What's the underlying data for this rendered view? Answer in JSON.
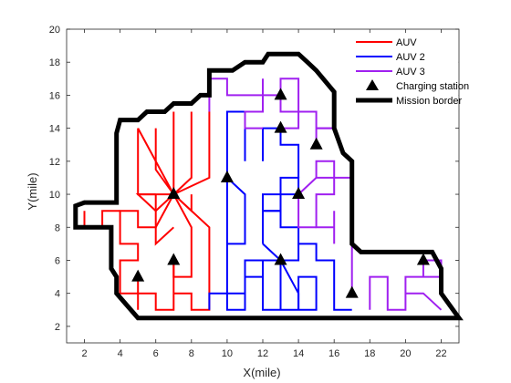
{
  "chart_data": {
    "type": "line",
    "xlabel": "X(mile)",
    "ylabel": "Y(mile)",
    "xlim": [
      1,
      23
    ],
    "ylim": [
      1,
      20
    ],
    "xticks": [
      2,
      4,
      6,
      8,
      10,
      12,
      14,
      16,
      18,
      20,
      22
    ],
    "yticks": [
      2,
      4,
      6,
      8,
      10,
      12,
      14,
      16,
      18,
      20
    ],
    "grid": false,
    "legend_position": "top-right",
    "legend": [
      {
        "label": "AUV",
        "color": "#ff0000",
        "kind": "line"
      },
      {
        "label": "AUV 2",
        "color": "#0000ff",
        "kind": "line"
      },
      {
        "label": "AUV 3",
        "color": "#a020f0",
        "kind": "line"
      },
      {
        "label": "Charging station",
        "color": "#000000",
        "kind": "triangle"
      },
      {
        "label": "Mission border",
        "color": "#000000",
        "kind": "thick-line"
      }
    ],
    "border": [
      [
        1.5,
        8
      ],
      [
        1.5,
        9.3
      ],
      [
        2,
        9.5
      ],
      [
        3.8,
        9.5
      ],
      [
        3.8,
        13.7
      ],
      [
        4,
        14.5
      ],
      [
        5,
        14.5
      ],
      [
        5.5,
        15
      ],
      [
        6.5,
        15
      ],
      [
        7,
        15.5
      ],
      [
        8,
        15.5
      ],
      [
        8.5,
        16
      ],
      [
        9,
        16
      ],
      [
        9,
        17.5
      ],
      [
        10.3,
        17.5
      ],
      [
        11,
        18
      ],
      [
        12,
        18
      ],
      [
        12.3,
        18.5
      ],
      [
        14,
        18.5
      ],
      [
        14.5,
        18
      ],
      [
        15,
        17.5
      ],
      [
        16,
        16.2
      ],
      [
        16,
        14
      ],
      [
        16.5,
        12.5
      ],
      [
        17,
        12
      ],
      [
        17,
        7
      ],
      [
        17.5,
        6.5
      ],
      [
        21.5,
        6.5
      ],
      [
        22,
        5.5
      ],
      [
        22,
        4
      ],
      [
        23,
        2.5
      ],
      [
        5,
        2.5
      ],
      [
        3.8,
        4
      ],
      [
        3.8,
        5
      ],
      [
        3.5,
        5.5
      ],
      [
        3.5,
        8
      ],
      [
        3,
        8
      ],
      [
        2,
        8
      ]
    ],
    "stations": [
      [
        5,
        5
      ],
      [
        7,
        6
      ],
      [
        7,
        10
      ],
      [
        10,
        11
      ],
      [
        13,
        6
      ],
      [
        13,
        14
      ],
      [
        13,
        16
      ],
      [
        14,
        10
      ],
      [
        15,
        13
      ],
      [
        17,
        4
      ],
      [
        21,
        6
      ]
    ],
    "series": [
      {
        "color": "#ff0000",
        "paths": [
          [
            [
              5,
              3
            ],
            [
              5,
              4
            ],
            [
              6,
              4
            ],
            [
              6,
              3
            ],
            [
              7,
              3
            ],
            [
              7,
              6
            ],
            [
              7,
              4
            ],
            [
              8,
              4
            ],
            [
              8,
              3
            ],
            [
              9,
              3
            ],
            [
              9,
              8
            ],
            [
              7,
              10
            ]
          ],
          [
            [
              5,
              5
            ],
            [
              5,
              4
            ],
            [
              4,
              4
            ],
            [
              4,
              6
            ],
            [
              5,
              6
            ],
            [
              5,
              7
            ],
            [
              4,
              7
            ],
            [
              4,
              9
            ],
            [
              5,
              9
            ],
            [
              5,
              8
            ],
            [
              6,
              8
            ],
            [
              6,
              9
            ],
            [
              6,
              10
            ]
          ],
          [
            [
              2,
              9
            ],
            [
              2,
              8
            ],
            [
              3,
              8
            ],
            [
              3,
              9
            ],
            [
              4,
              9
            ]
          ],
          [
            [
              5,
              14
            ],
            [
              5,
              10
            ],
            [
              7,
              10
            ],
            [
              5,
              14
            ]
          ],
          [
            [
              6,
              14
            ],
            [
              6,
              11.5
            ],
            [
              7,
              10
            ],
            [
              8,
              8
            ],
            [
              8,
              5
            ],
            [
              7,
              5
            ],
            [
              7,
              6
            ]
          ],
          [
            [
              7,
              15
            ],
            [
              7,
              11
            ],
            [
              7,
              10
            ],
            [
              8,
              9
            ],
            [
              8,
              10
            ]
          ],
          [
            [
              8,
              15
            ],
            [
              8,
              11
            ],
            [
              7,
              10
            ],
            [
              9,
              11
            ],
            [
              9,
              15
            ]
          ],
          [
            [
              6,
              10
            ],
            [
              5,
              10
            ],
            [
              6,
              9
            ],
            [
              7,
              10
            ],
            [
              6,
              8
            ],
            [
              6,
              7
            ],
            [
              7,
              8
            ]
          ]
        ]
      },
      {
        "color": "#0000ff",
        "paths": [
          [
            [
              9,
              3
            ],
            [
              9,
              4
            ],
            [
              10,
              4
            ],
            [
              10,
              9
            ],
            [
              10,
              11
            ],
            [
              11,
              10
            ],
            [
              11,
              7
            ],
            [
              10,
              7
            ]
          ],
          [
            [
              10,
              4
            ],
            [
              10,
              3
            ],
            [
              11,
              3
            ],
            [
              11,
              5
            ],
            [
              12,
              5
            ],
            [
              12,
              3
            ],
            [
              14,
              3
            ],
            [
              14,
              5
            ],
            [
              15,
              5
            ],
            [
              15,
              3
            ],
            [
              14,
              3
            ]
          ],
          [
            [
              12,
              5
            ],
            [
              12,
              6
            ],
            [
              13,
              6
            ],
            [
              13,
              3
            ],
            [
              13,
              6
            ],
            [
              14,
              4
            ],
            [
              14,
              3
            ]
          ],
          [
            [
              12,
              6
            ],
            [
              11,
              6
            ],
            [
              11,
              4
            ],
            [
              10,
              4
            ]
          ],
          [
            [
              12,
              7
            ],
            [
              12,
              9
            ],
            [
              13,
              9
            ],
            [
              13,
              8
            ],
            [
              14,
              8
            ],
            [
              14,
              7
            ],
            [
              15,
              7
            ],
            [
              15,
              6
            ],
            [
              16,
              6
            ],
            [
              16,
              3
            ],
            [
              17,
              3
            ]
          ],
          [
            [
              13,
              6
            ],
            [
              12,
              7
            ]
          ],
          [
            [
              13,
              6
            ],
            [
              14,
              6
            ],
            [
              14,
              7
            ]
          ],
          [
            [
              12,
              9
            ],
            [
              12,
              10
            ],
            [
              13,
              10
            ],
            [
              13,
              11
            ],
            [
              14,
              11
            ],
            [
              14,
              10
            ],
            [
              13,
              10
            ],
            [
              13,
              9
            ],
            [
              12,
              9
            ]
          ],
          [
            [
              11,
              12
            ],
            [
              11,
              15
            ],
            [
              10,
              15
            ],
            [
              10,
              11
            ]
          ],
          [
            [
              12,
              12
            ],
            [
              12,
              14
            ],
            [
              13,
              14
            ],
            [
              13,
              13
            ],
            [
              14,
              13
            ],
            [
              14,
              11
            ]
          ]
        ]
      },
      {
        "color": "#a020f0",
        "paths": [
          [
            [
              9,
              17
            ],
            [
              9,
              15
            ],
            [
              9,
              17
            ],
            [
              10,
              17
            ],
            [
              10,
              16
            ],
            [
              12,
              16
            ],
            [
              12,
              15
            ],
            [
              11,
              15
            ],
            [
              11,
              14
            ],
            [
              12,
              14
            ]
          ],
          [
            [
              12,
              17
            ],
            [
              12,
              16
            ],
            [
              13,
              16
            ],
            [
              13,
              17
            ],
            [
              14,
              17
            ],
            [
              14,
              15
            ],
            [
              15,
              15
            ],
            [
              15,
              13
            ],
            [
              15,
              14
            ],
            [
              16,
              14
            ]
          ],
          [
            [
              13,
              16
            ],
            [
              13,
              15
            ],
            [
              14,
              15
            ],
            [
              14,
              14
            ],
            [
              13,
              14
            ]
          ],
          [
            [
              14,
              10
            ],
            [
              15,
              11
            ],
            [
              16,
              11
            ],
            [
              16,
              10
            ],
            [
              15,
              10
            ],
            [
              15,
              8
            ],
            [
              16,
              8
            ],
            [
              16,
              9
            ],
            [
              16,
              7
            ]
          ],
          [
            [
              14,
              10
            ],
            [
              14,
              8
            ],
            [
              15,
              8
            ]
          ],
          [
            [
              15,
              11
            ],
            [
              15,
              12
            ],
            [
              16,
              12
            ],
            [
              16,
              11
            ]
          ],
          [
            [
              17,
              4
            ],
            [
              17,
              11
            ],
            [
              16,
              11
            ]
          ],
          [
            [
              18,
              3
            ],
            [
              18,
              5
            ],
            [
              19,
              5
            ],
            [
              19,
              3
            ],
            [
              20,
              3
            ],
            [
              20,
              5
            ],
            [
              21,
              5
            ],
            [
              21,
              6
            ],
            [
              22,
              6
            ],
            [
              22,
              5
            ],
            [
              21,
              5
            ]
          ],
          [
            [
              20,
              4
            ],
            [
              21,
              4
            ],
            [
              22,
              3
            ]
          ],
          [
            [
              15,
              14
            ],
            [
              16,
              14
            ],
            [
              16,
              15
            ]
          ],
          [
            [
              16,
              16
            ],
            [
              16,
              15
            ]
          ]
        ]
      }
    ]
  }
}
